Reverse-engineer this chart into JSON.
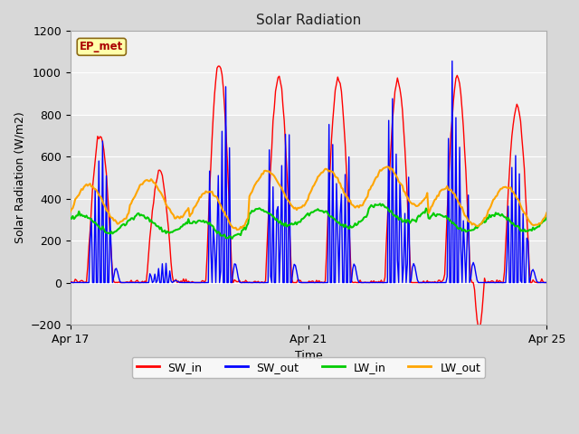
{
  "title": "Solar Radiation",
  "ylabel": "Solar Radiation (W/m2)",
  "xlabel": "Time",
  "ylim": [
    -200,
    1200
  ],
  "yticks": [
    -200,
    0,
    200,
    400,
    600,
    800,
    1000,
    1200
  ],
  "xtick_labels": [
    "Apr 17",
    "Apr 21",
    "Apr 25"
  ],
  "xtick_positions": [
    0,
    4,
    8
  ],
  "fig_bg_color": "#d8d8d8",
  "plot_bg_color": "#e8e8e8",
  "upper_band_color": "#f0f0f0",
  "grid_color": "#ffffff",
  "colors": {
    "SW_in": "#ff0000",
    "SW_out": "#0000ff",
    "LW_in": "#00cc00",
    "LW_out": "#ffa500"
  },
  "legend_label": "EP_met",
  "legend_box_color": "#ffffaa",
  "legend_box_edge": "#8B6914"
}
